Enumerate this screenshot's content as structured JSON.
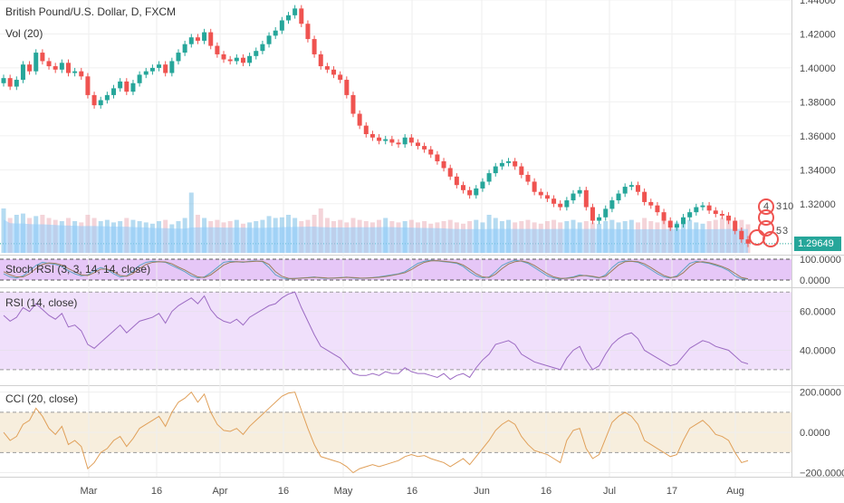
{
  "header": {
    "symbol_title": "British Pound/U.S. Dollar, D, FXCM",
    "volume_label": "Vol (20)"
  },
  "panes": {
    "stoch_label": "Stoch RSI (3, 3, 14, 14, close)",
    "rsi_label": "RSI (14, close)",
    "cci_label": "CCI (20, close)"
  },
  "price_badge": "1.29649",
  "marker_text": {
    "a": "4",
    "b": "3",
    "c": "10",
    "d": "5",
    "e": "3"
  },
  "colors": {
    "up": "#26a69a",
    "down": "#ef5350",
    "volume": "#90caf9",
    "stoch_fill": "#e6c7f7",
    "rsi_fill": "#f0e0fb",
    "rsi_line": "#9c6bc3",
    "cci_fill": "#f7eedd",
    "cci_line": "#e0a05a",
    "stoch_k": "#5fa5c4",
    "stoch_d": "#9b7e5a"
  },
  "chart_data": [
    {
      "type": "candlestick",
      "title": "British Pound/U.S. Dollar, D, FXCM",
      "x": [
        "Mar",
        "16",
        "Apr",
        "16",
        "May",
        "16",
        "Jun",
        "16",
        "Jul",
        "17",
        "Aug"
      ],
      "ylim": [
        1.29,
        1.44
      ],
      "yticks": [
        1.44,
        1.42,
        1.4,
        1.38,
        1.36,
        1.34,
        1.32
      ],
      "last_price": 1.29649,
      "closes": [
        1.394,
        1.389,
        1.393,
        1.402,
        1.398,
        1.409,
        1.404,
        1.401,
        1.399,
        1.403,
        1.397,
        1.398,
        1.395,
        1.384,
        1.378,
        1.381,
        1.384,
        1.388,
        1.392,
        1.386,
        1.391,
        1.396,
        1.398,
        1.4,
        1.402,
        1.397,
        1.404,
        1.409,
        1.414,
        1.418,
        1.416,
        1.421,
        1.413,
        1.408,
        1.405,
        1.404,
        1.406,
        1.403,
        1.407,
        1.41,
        1.414,
        1.419,
        1.422,
        1.428,
        1.431,
        1.435,
        1.426,
        1.417,
        1.408,
        1.401,
        1.399,
        1.396,
        1.393,
        1.384,
        1.373,
        1.366,
        1.361,
        1.359,
        1.357,
        1.358,
        1.356,
        1.355,
        1.359,
        1.356,
        1.354,
        1.352,
        1.349,
        1.345,
        1.341,
        1.336,
        1.331,
        1.328,
        1.325,
        1.329,
        1.333,
        1.338,
        1.342,
        1.344,
        1.345,
        1.342,
        1.337,
        1.333,
        1.327,
        1.325,
        1.323,
        1.32,
        1.318,
        1.322,
        1.326,
        1.328,
        1.318,
        1.31,
        1.312,
        1.317,
        1.322,
        1.326,
        1.33,
        1.331,
        1.327,
        1.321,
        1.319,
        1.315,
        1.31,
        1.306,
        1.308,
        1.312,
        1.315,
        1.318,
        1.319,
        1.316,
        1.314,
        1.313,
        1.31,
        1.304,
        1.299,
        1.2965
      ]
    },
    {
      "type": "bar",
      "title": "Vol (20)",
      "values": [
        0.7,
        0.55,
        0.6,
        0.62,
        0.55,
        0.58,
        0.6,
        0.55,
        0.52,
        0.5,
        0.55,
        0.5,
        0.48,
        0.6,
        0.55,
        0.5,
        0.52,
        0.48,
        0.5,
        0.55,
        0.52,
        0.5,
        0.48,
        0.46,
        0.5,
        0.52,
        0.45,
        0.5,
        0.55,
        0.95,
        0.6,
        0.55,
        0.5,
        0.52,
        0.48,
        0.5,
        0.52,
        0.46,
        0.48,
        0.5,
        0.52,
        0.58,
        0.55,
        0.56,
        0.6,
        0.55,
        0.5,
        0.52,
        0.6,
        0.7,
        0.55,
        0.5,
        0.52,
        0.48,
        0.55,
        0.52,
        0.5,
        0.48,
        0.52,
        0.55,
        0.5,
        0.48,
        0.5,
        0.52,
        0.48,
        0.5,
        0.46,
        0.48,
        0.5,
        0.52,
        0.48,
        0.46,
        0.5,
        0.52,
        0.48,
        0.6,
        0.55,
        0.5,
        0.52,
        0.48,
        0.5,
        0.52,
        0.48,
        0.46,
        0.5,
        0.52,
        0.48,
        0.5,
        0.52,
        0.48,
        0.5,
        0.48,
        0.46,
        0.5,
        0.52,
        0.48,
        0.5,
        0.52,
        0.48,
        0.55,
        0.5,
        0.48,
        0.52,
        0.5,
        0.48,
        0.5,
        0.52,
        0.48,
        0.46,
        0.5,
        0.52,
        0.55,
        0.5,
        0.48,
        0.52,
        0.45
      ]
    },
    {
      "type": "line",
      "title": "Stoch RSI (3, 3, 14, 14, close)",
      "ylim": [
        0,
        100
      ],
      "yticks": [
        100.0,
        0.0
      ],
      "series": [
        {
          "values": [
            30,
            15,
            10,
            20,
            45,
            70,
            85,
            80,
            75,
            65,
            45,
            30,
            20,
            25,
            45,
            60,
            50,
            30,
            15,
            20,
            45,
            70,
            85,
            90,
            88,
            85,
            70,
            55,
            40,
            20,
            10,
            15,
            35,
            60,
            85,
            90,
            88,
            85,
            90,
            92,
            88,
            60,
            25,
            10,
            5,
            8,
            10,
            12,
            15,
            10,
            8,
            10,
            12,
            14,
            10,
            8,
            10,
            12,
            15,
            20,
            25,
            30,
            40,
            60,
            80,
            90,
            95,
            92,
            88,
            85,
            80,
            65,
            40,
            20,
            10,
            15,
            40,
            70,
            85,
            95,
            90,
            80,
            60,
            40,
            20,
            10,
            5,
            10,
            15,
            25,
            20,
            15,
            10,
            25,
            60,
            85,
            92,
            90,
            85,
            70,
            50,
            30,
            15,
            10,
            20,
            50,
            80,
            90,
            85,
            80,
            70,
            60,
            45,
            20,
            5,
            5
          ]
        },
        {
          "values": [
            40,
            25,
            15,
            15,
            30,
            55,
            75,
            82,
            80,
            72,
            55,
            40,
            25,
            22,
            35,
            52,
            52,
            40,
            22,
            18,
            32,
            55,
            75,
            85,
            88,
            87,
            78,
            62,
            48,
            30,
            15,
            12,
            25,
            48,
            72,
            85,
            88,
            87,
            88,
            90,
            90,
            75,
            40,
            18,
            8,
            7,
            9,
            11,
            13,
            12,
            10,
            9,
            11,
            13,
            12,
            10,
            9,
            11,
            13,
            17,
            22,
            28,
            35,
            50,
            70,
            85,
            92,
            93,
            90,
            87,
            83,
            72,
            52,
            30,
            15,
            12,
            28,
            55,
            77,
            88,
            92,
            85,
            70,
            50,
            30,
            15,
            8,
            8,
            12,
            20,
            22,
            18,
            12,
            18,
            45,
            72,
            88,
            90,
            88,
            78,
            60,
            40,
            22,
            12,
            15,
            35,
            65,
            85,
            88,
            83,
            75,
            65,
            52,
            32,
            12,
            6
          ]
        }
      ]
    },
    {
      "type": "line",
      "title": "RSI (14, close)",
      "ylim": [
        22,
        72
      ],
      "yticks": [
        60.0,
        40.0
      ],
      "values": [
        58,
        55,
        57,
        62,
        60,
        64,
        61,
        58,
        56,
        59,
        52,
        53,
        50,
        43,
        41,
        44,
        47,
        50,
        53,
        49,
        52,
        55,
        56,
        57,
        59,
        54,
        60,
        63,
        65,
        67,
        64,
        68,
        61,
        57,
        55,
        54,
        56,
        53,
        57,
        59,
        61,
        63,
        64,
        67,
        69,
        70,
        62,
        55,
        48,
        42,
        40,
        38,
        36,
        32,
        28,
        27,
        27,
        28,
        27,
        29,
        28,
        28,
        31,
        29,
        28,
        28,
        27,
        26,
        28,
        25,
        27,
        28,
        26,
        31,
        35,
        38,
        43,
        44,
        45,
        43,
        38,
        36,
        34,
        33,
        32,
        31,
        30,
        36,
        40,
        42,
        35,
        30,
        32,
        38,
        43,
        46,
        48,
        49,
        46,
        40,
        38,
        36,
        34,
        32,
        33,
        37,
        41,
        43,
        45,
        44,
        42,
        41,
        40,
        37,
        34,
        33
      ]
    },
    {
      "type": "line",
      "title": "CCI (20, close)",
      "ylim": [
        -220,
        230
      ],
      "yticks": [
        200.0,
        0.0,
        -200.0
      ],
      "values": [
        0,
        -40,
        -20,
        40,
        60,
        120,
        80,
        20,
        -10,
        30,
        -60,
        -40,
        -70,
        -180,
        -150,
        -100,
        -80,
        -40,
        -20,
        -70,
        -30,
        20,
        40,
        60,
        80,
        30,
        100,
        150,
        170,
        200,
        150,
        190,
        100,
        40,
        10,
        5,
        20,
        -10,
        30,
        60,
        90,
        120,
        150,
        180,
        195,
        200,
        110,
        20,
        -60,
        -120,
        -130,
        -140,
        -150,
        -170,
        -200,
        -180,
        -170,
        -160,
        -170,
        -160,
        -150,
        -140,
        -120,
        -110,
        -120,
        -115,
        -130,
        -140,
        -150,
        -170,
        -150,
        -130,
        -160,
        -120,
        -80,
        -40,
        10,
        40,
        60,
        40,
        -20,
        -60,
        -90,
        -100,
        -110,
        -130,
        -150,
        -40,
        10,
        20,
        -80,
        -130,
        -110,
        -30,
        50,
        80,
        100,
        80,
        40,
        -40,
        -60,
        -80,
        -100,
        -120,
        -110,
        -40,
        20,
        40,
        60,
        30,
        -10,
        -20,
        -40,
        -100,
        -150,
        -140
      ]
    }
  ]
}
